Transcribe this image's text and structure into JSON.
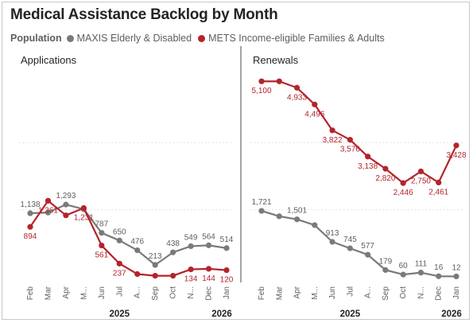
{
  "title": "Medical Assistance Backlog by Month",
  "legend": {
    "title": "Population",
    "items": [
      {
        "label": "MAXIS Elderly & Disabled",
        "color": "#7a7a7a"
      },
      {
        "label": "METS Income-eligible Families & Adults",
        "color": "#b3242c"
      }
    ]
  },
  "colors": {
    "maxis": "#7a7a7a",
    "mets": "#b3242c",
    "grid": "#dcdcdc",
    "divider": "#4a4a4a"
  },
  "chart_data": [
    {
      "type": "line",
      "title": "Applications",
      "categories": [
        "Feb",
        "Mar",
        "Apr",
        "M...",
        "Jun",
        "Jul",
        "A...",
        "Sep",
        "Oct",
        "N...",
        "Dec",
        "Jan"
      ],
      "years": [
        {
          "label": "2025",
          "from": 0,
          "to": 10
        },
        {
          "label": "2026",
          "from": 11,
          "to": 11
        }
      ],
      "ylim": [
        0,
        3600
      ],
      "grid": "dotted",
      "series": [
        {
          "name": "MAXIS Elderly & Disabled",
          "color": "#7a7a7a",
          "values": [
            1138,
            1150,
            1293,
            1210,
            787,
            650,
            476,
            213,
            438,
            549,
            564,
            514
          ],
          "labels": [
            "1,138",
            "",
            "1,293",
            "",
            "787",
            "650",
            "476",
            "213",
            "438",
            "549",
            "564",
            "514"
          ],
          "label_pos": [
            "above",
            "",
            "above",
            "",
            "above",
            "above",
            "above",
            "above",
            "above",
            "above",
            "above",
            "above"
          ]
        },
        {
          "name": "METS Income-eligible Families & Adults",
          "color": "#b3242c",
          "values": [
            894,
            1361,
            1100,
            1231,
            561,
            237,
            50,
            20,
            20,
            134,
            144,
            120
          ],
          "labels": [
            "894",
            "1,361",
            "",
            "1,231",
            "561",
            "237",
            "",
            "",
            "",
            "134",
            "144",
            "120"
          ],
          "label_pos": [
            "below",
            "below",
            "",
            "below",
            "below",
            "below",
            "",
            "",
            "",
            "below",
            "below",
            "below"
          ]
        }
      ]
    },
    {
      "type": "line",
      "title": "Renewals",
      "categories": [
        "Feb",
        "Mar",
        "Apr",
        "M...",
        "Jun",
        "Jul",
        "A...",
        "Sep",
        "Oct",
        "N...",
        "Dec",
        "Jan"
      ],
      "years": [
        {
          "label": "2025",
          "from": 0,
          "to": 10
        },
        {
          "label": "2026",
          "from": 11,
          "to": 11
        }
      ],
      "ylim": [
        0,
        5250
      ],
      "grid": "dotted",
      "series": [
        {
          "name": "MAXIS Elderly & Disabled",
          "color": "#7a7a7a",
          "values": [
            1721,
            1580,
            1501,
            1350,
            913,
            745,
            577,
            179,
            60,
            111,
            16,
            12
          ],
          "labels": [
            "1,721",
            "",
            "1,501",
            "",
            "913",
            "745",
            "577",
            "179",
            "60",
            "111",
            "16",
            "12"
          ],
          "label_pos": [
            "above",
            "",
            "above",
            "",
            "above",
            "above",
            "above",
            "above",
            "above",
            "above",
            "above",
            "above"
          ]
        },
        {
          "name": "METS Income-eligible Families & Adults",
          "color": "#b3242c",
          "values": [
            5100,
            5100,
            4933,
            4496,
            3822,
            3576,
            3138,
            2820,
            2446,
            2750,
            2461,
            3428
          ],
          "labels": [
            "5,100",
            "",
            "4,933",
            "4,496",
            "3,822",
            "3,576",
            "3,138",
            "2,820",
            "2,446",
            "2,750",
            "2,461",
            "3,428"
          ],
          "label_pos": [
            "below",
            "",
            "below",
            "below",
            "below",
            "below",
            "below",
            "below",
            "below",
            "below",
            "below",
            "below"
          ]
        }
      ]
    }
  ]
}
